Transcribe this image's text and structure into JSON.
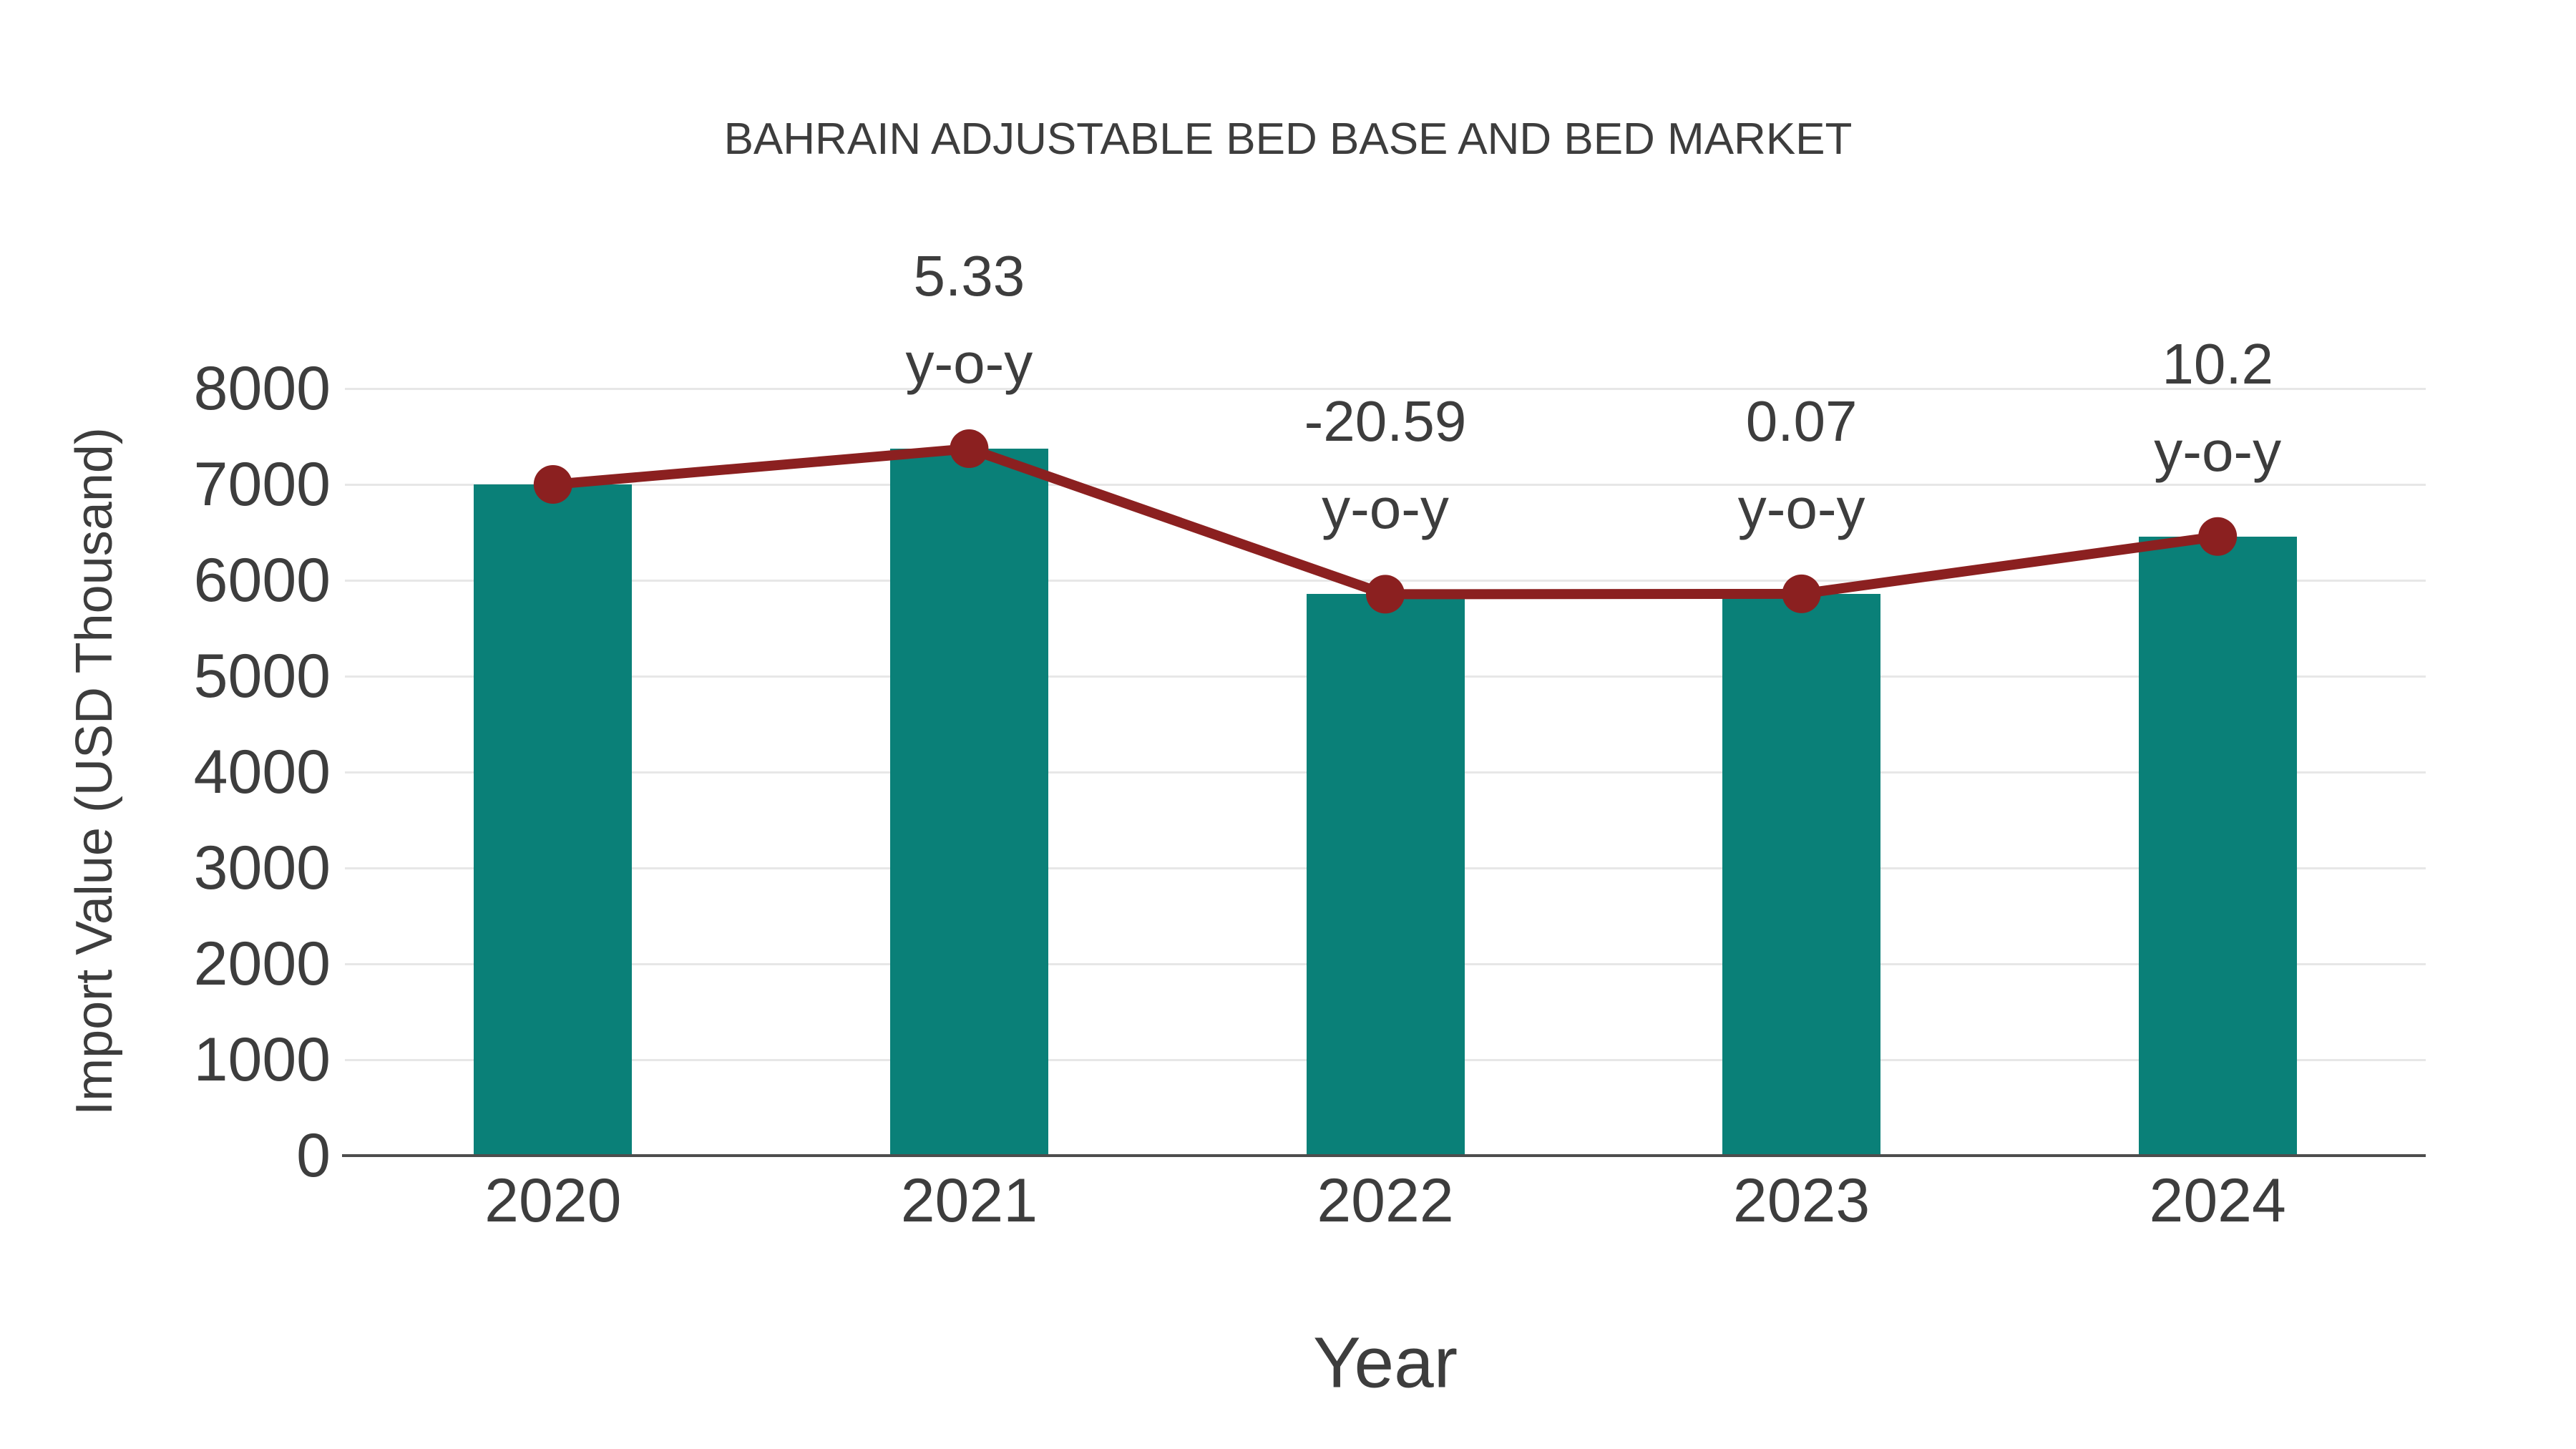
{
  "chart_data": {
    "type": "bar",
    "title": "BAHRAIN ADJUSTABLE BED BASE AND BED MARKET",
    "xlabel": "Year",
    "ylabel": "Import Value (USD Thousand)",
    "categories": [
      "2020",
      "2021",
      "2022",
      "2023",
      "2024"
    ],
    "series": [
      {
        "name": "Import Value bars",
        "type": "bar",
        "values": [
          7000,
          7373,
          5855,
          5859,
          6457
        ],
        "color": "#0A8078"
      },
      {
        "name": "Import Value trend line",
        "type": "line",
        "values": [
          7000,
          7373,
          5855,
          5859,
          6457
        ],
        "color": "#8B2020"
      }
    ],
    "annotations": [
      {
        "category": "2021",
        "lines": [
          "5.33",
          "y-o-y"
        ]
      },
      {
        "category": "2022",
        "lines": [
          "-20.59",
          "y-o-y"
        ]
      },
      {
        "category": "2023",
        "lines": [
          "0.07",
          "y-o-y"
        ]
      },
      {
        "category": "2024",
        "lines": [
          "10.2",
          "y-o-y"
        ]
      }
    ],
    "ylim": [
      0,
      8000
    ],
    "ytick_step": 1000,
    "grid": "horizontal",
    "legend_position": "none"
  },
  "colors": {
    "background": "#ffffff",
    "bar": "#0A8078",
    "line": "#8B2020",
    "text": "#3d3d3d",
    "gridline": "#e7e7e7",
    "axis": "#4d4d4d"
  }
}
